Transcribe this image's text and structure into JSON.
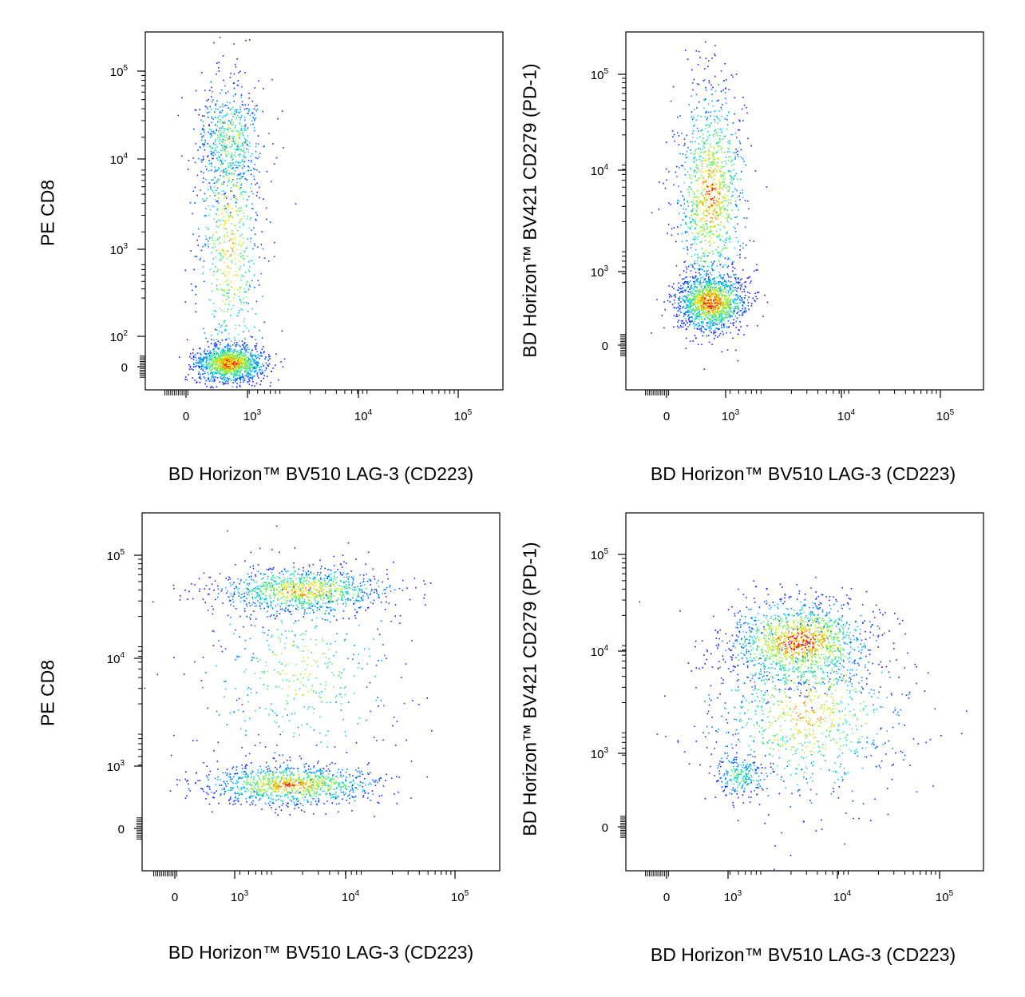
{
  "chart_data": [
    {
      "type": "scatter",
      "title": "",
      "xlabel": "BD Horizon™ BV510 LAG-3 (CD223)",
      "ylabel": "PE CD8",
      "x_scale": "biexponential",
      "y_scale": "biexponential",
      "xlim": [
        -200,
        250000
      ],
      "ylim": [
        -100,
        250000
      ],
      "x_ticks": [
        "0",
        "10^3",
        "10^4",
        "10^5"
      ],
      "y_ticks": [
        "0",
        "10^2",
        "10^3",
        "10^4",
        "10^5"
      ],
      "populations": [
        {
          "name": "",
          "x_center": 250,
          "y_center": 20000,
          "x_spread": 0.12,
          "y_spread": 0.18,
          "fraction": 0.18
        },
        {
          "name": "",
          "x_center": 250,
          "y_center": 1500,
          "x_spread": 0.12,
          "y_spread": 0.55,
          "fraction": 0.3
        },
        {
          "name": "",
          "x_center": 250,
          "y_center": 20,
          "x_spread": 0.12,
          "y_spread": 0.06,
          "fraction": 0.52
        }
      ]
    },
    {
      "type": "scatter",
      "title": "",
      "xlabel": "BD Horizon™ BV510 LAG-3 (CD223)",
      "ylabel": "BD Horizon™ BV421 CD279 (PD-1)",
      "x_scale": "biexponential",
      "y_scale": "biexponential",
      "xlim": [
        -200,
        250000
      ],
      "ylim": [
        -100,
        250000
      ],
      "x_ticks": [
        "0",
        "10^3",
        "10^4",
        "10^5"
      ],
      "y_ticks": [
        "0",
        "10^3",
        "10^4",
        "10^5"
      ],
      "populations": [
        {
          "name": "",
          "x_center": 250,
          "y_center": 4000,
          "x_spread": 0.12,
          "y_spread": 0.4,
          "fraction": 0.45
        },
        {
          "name": "",
          "x_center": 250,
          "y_center": 250,
          "x_spread": 0.12,
          "y_spread": 0.1,
          "fraction": 0.55
        }
      ]
    },
    {
      "type": "scatter",
      "title": "",
      "xlabel": "BD Horizon™ BV510 LAG-3 (CD223)",
      "ylabel": "PE CD8",
      "x_scale": "biexponential",
      "y_scale": "biexponential",
      "xlim": [
        -200,
        250000
      ],
      "ylim": [
        -100,
        250000
      ],
      "x_ticks": [
        "0",
        "10^3",
        "10^4",
        "10^5"
      ],
      "y_ticks": [
        "0",
        "10^3",
        "10^4",
        "10^5"
      ],
      "populations": [
        {
          "name": "",
          "x_center": 2000,
          "y_center": 40000,
          "x_spread": 0.3,
          "y_spread": 0.08,
          "fraction": 0.4
        },
        {
          "name": "",
          "x_center": 1500,
          "y_center": 250,
          "x_spread": 0.3,
          "y_spread": 0.07,
          "fraction": 0.42
        },
        {
          "name": "",
          "x_center": 1800,
          "y_center": 5000,
          "x_spread": 0.35,
          "y_spread": 0.35,
          "fraction": 0.18
        }
      ]
    },
    {
      "type": "scatter",
      "title": "",
      "xlabel": "BD Horizon™ BV510 LAG-3 (CD223)",
      "ylabel": "BD Horizon™ BV421 CD279 (PD-1)",
      "x_scale": "biexponential",
      "y_scale": "biexponential",
      "xlim": [
        -200,
        250000
      ],
      "ylim": [
        -100,
        250000
      ],
      "x_ticks": [
        "0",
        "10^3",
        "10^4",
        "10^5"
      ],
      "y_ticks": [
        "0",
        "10^3",
        "10^4",
        "10^5"
      ],
      "populations": [
        {
          "name": "",
          "x_center": 2500,
          "y_center": 10000,
          "x_spread": 0.25,
          "y_spread": 0.15,
          "fraction": 0.55
        },
        {
          "name": "",
          "x_center": 3000,
          "y_center": 1500,
          "x_spread": 0.35,
          "y_spread": 0.3,
          "fraction": 0.35
        },
        {
          "name": "",
          "x_center": 500,
          "y_center": 300,
          "x_spread": 0.1,
          "y_spread": 0.08,
          "fraction": 0.1
        }
      ]
    }
  ]
}
